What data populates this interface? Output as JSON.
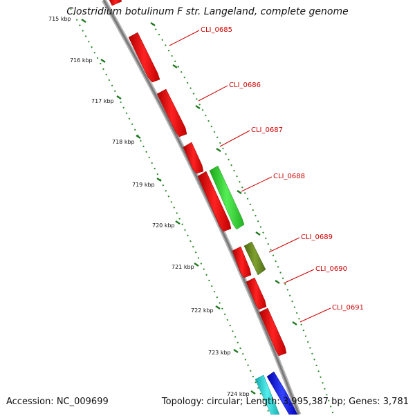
{
  "title": "Clostridium botulinum F str. Langeland, complete genome",
  "footer": {
    "accession": "Accession: NC_009699",
    "summary": "Topology: circular; Length: 3,995,387 bp; Genes: 3,781"
  },
  "colors": {
    "backbone": "#8a8a8a",
    "tick": "#1f7a1f",
    "label": "#cc0000",
    "gene_red": "#ee1111",
    "gene_green": "#33dd33",
    "gene_olive": "#6b8e23",
    "gene_cyan": "#22d3d3",
    "gene_blue": "#1111ee"
  },
  "scale": {
    "ticks": [
      "715 kbp",
      "716 kbp",
      "717 kbp",
      "718 kbp",
      "719 kbp",
      "720 kbp",
      "721 kbp",
      "722 kbp",
      "723 kbp",
      "724 kbp"
    ]
  },
  "genes": [
    {
      "label": "CLI_0685"
    },
    {
      "label": "CLI_0686"
    },
    {
      "label": "CLI_0687"
    },
    {
      "label": "CLI_0688"
    },
    {
      "label": "CLI_0689"
    },
    {
      "label": "CLI_0690"
    },
    {
      "label": "CLI_0691"
    }
  ]
}
